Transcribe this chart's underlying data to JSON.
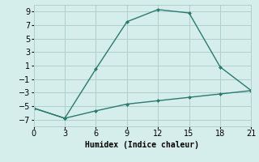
{
  "line1_x": [
    0,
    3,
    6,
    9,
    12,
    15,
    18,
    21
  ],
  "line1_y": [
    -5.3,
    -6.8,
    0.5,
    7.5,
    9.3,
    8.8,
    0.8,
    -2.7
  ],
  "line2_x": [
    0,
    3,
    6,
    9,
    12,
    15,
    18,
    21
  ],
  "line2_y": [
    -5.3,
    -6.8,
    -5.7,
    -4.7,
    -4.2,
    -3.7,
    -3.2,
    -2.7
  ],
  "line_color": "#2a7a6e",
  "bg_color": "#d6eeeb",
  "grid_color": "#b0d0cc",
  "xlabel": "Humidex (Indice chaleur)",
  "xlim": [
    0,
    21
  ],
  "ylim": [
    -8,
    10
  ],
  "xticks": [
    0,
    3,
    6,
    9,
    12,
    15,
    18,
    21
  ],
  "yticks": [
    -7,
    -5,
    -3,
    -1,
    1,
    3,
    5,
    7,
    9
  ],
  "xlabel_fontsize": 7,
  "tick_fontsize": 7
}
